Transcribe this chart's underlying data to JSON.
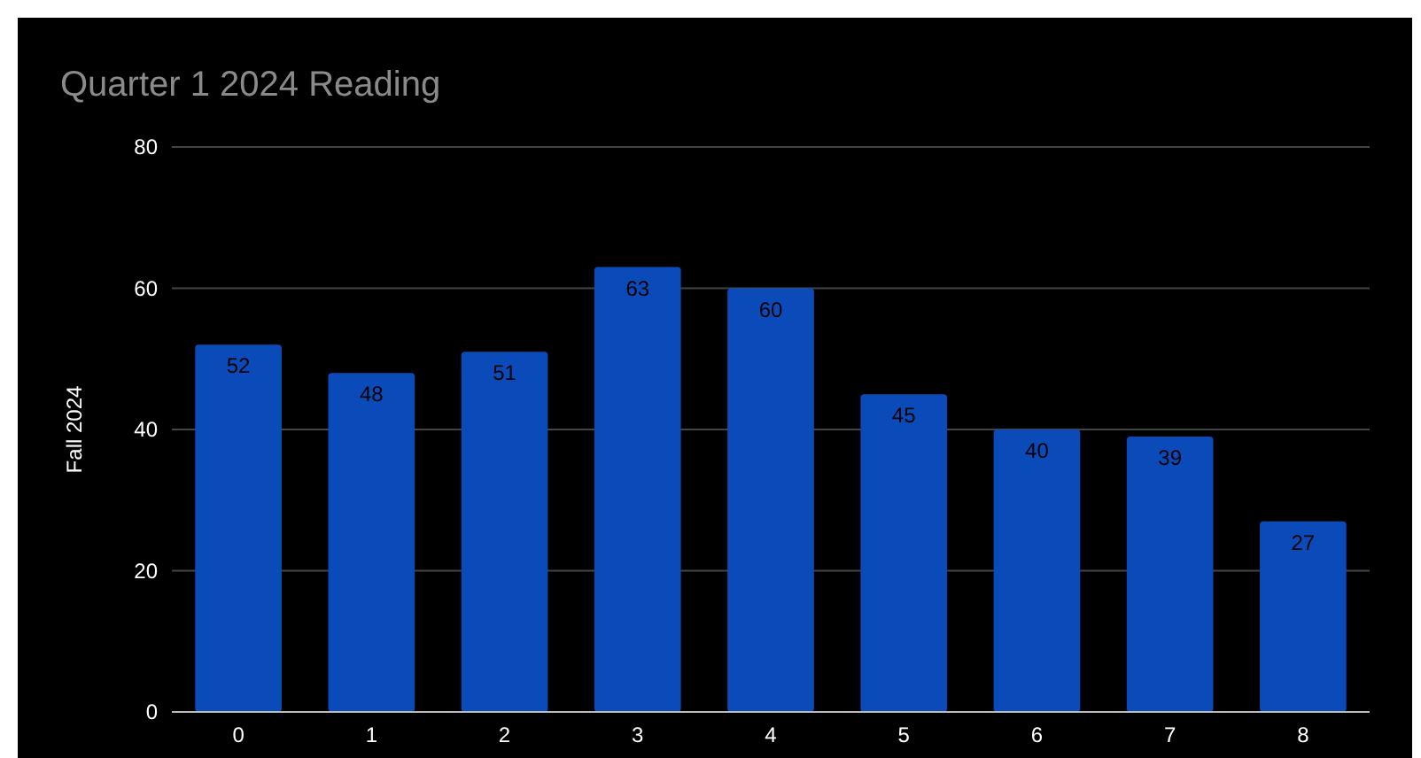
{
  "chart_data": {
    "type": "bar",
    "title": "Quarter 1 2024 Reading",
    "ylabel": "Fall 2024",
    "categories": [
      "0",
      "1",
      "2",
      "3",
      "4",
      "5",
      "6",
      "7",
      "8"
    ],
    "values": [
      52,
      48,
      51,
      63,
      60,
      45,
      40,
      39,
      27
    ],
    "color": "#0b4bb9",
    "ylim": [
      0,
      80
    ],
    "yticks": [
      0,
      20,
      40,
      60,
      80
    ],
    "grid": "y",
    "data_labels": true
  }
}
